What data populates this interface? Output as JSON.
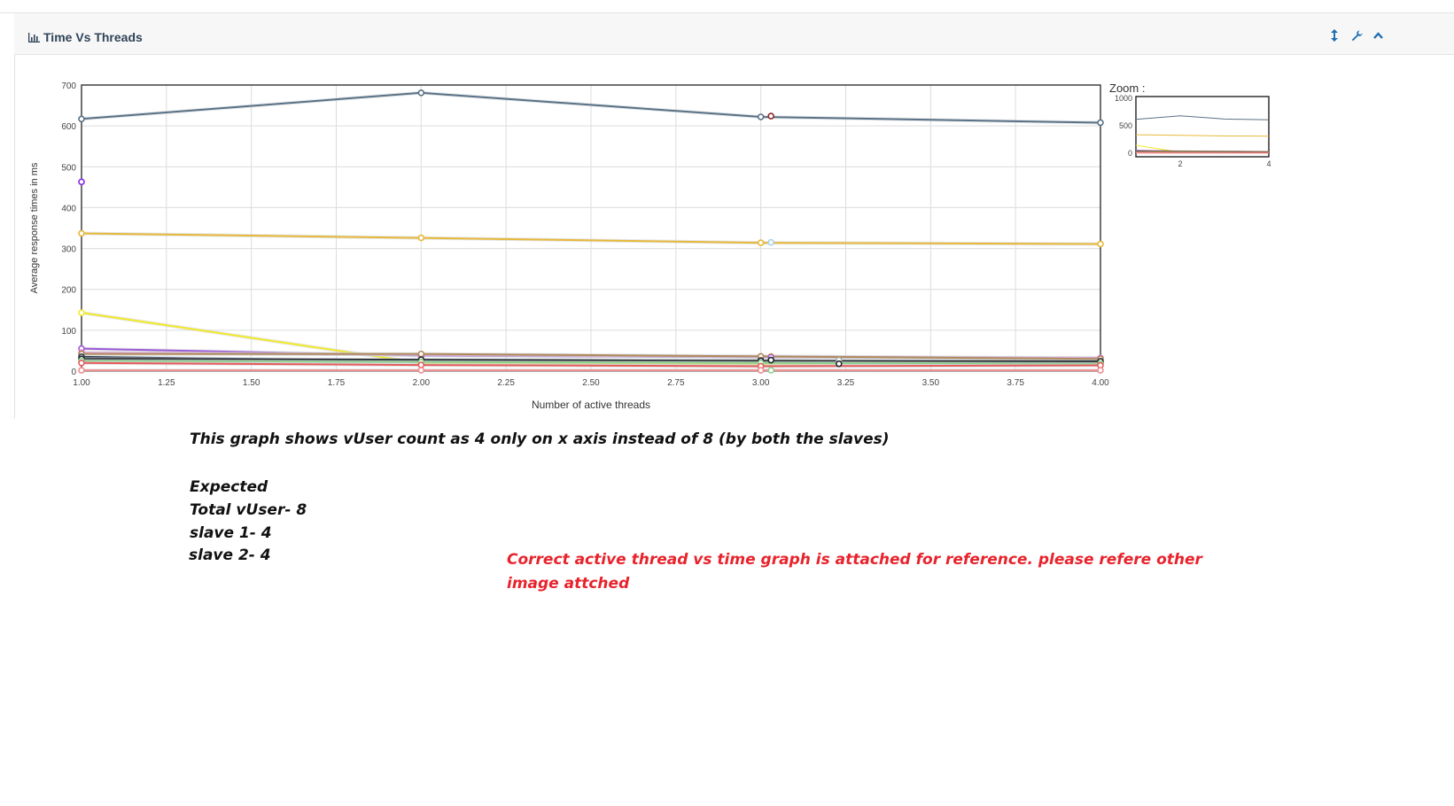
{
  "panel": {
    "title": "Time Vs Threads",
    "icons": [
      "bar-chart-icon",
      "resize-vertical-icon",
      "wrench-icon",
      "chevron-up-icon"
    ]
  },
  "chart_data": {
    "type": "line",
    "title": "",
    "xlabel": "Number of active threads",
    "ylabel": "Average response times in ms",
    "xlim": [
      1.0,
      4.0
    ],
    "ylim": [
      0,
      700
    ],
    "x_ticks": [
      "1.00",
      "1.25",
      "1.50",
      "1.75",
      "2.00",
      "2.25",
      "2.50",
      "2.75",
      "3.00",
      "3.25",
      "3.50",
      "3.75",
      "4.00"
    ],
    "y_ticks": [
      "0",
      "100",
      "200",
      "300",
      "400",
      "500",
      "600",
      "700"
    ],
    "grid": true,
    "series": [
      {
        "color": "#5a7185",
        "points": [
          [
            1.0,
            617
          ],
          [
            2.0,
            681
          ],
          [
            3.0,
            622
          ],
          [
            4.0,
            608
          ]
        ]
      },
      {
        "color": "#e8b83a",
        "points": [
          [
            1.0,
            337
          ],
          [
            2.0,
            326
          ],
          [
            3.0,
            314
          ],
          [
            4.0,
            311
          ]
        ]
      },
      {
        "color": "#f2ea2a",
        "points": [
          [
            1.0,
            143
          ],
          [
            2.0,
            20
          ],
          [
            3.0,
            18
          ],
          [
            4.0,
            22
          ]
        ]
      },
      {
        "color": "#9b59d6",
        "points": [
          [
            1.0,
            55
          ],
          [
            2.0,
            38
          ],
          [
            3.0,
            34
          ],
          [
            4.0,
            32
          ]
        ]
      },
      {
        "color": "#e27cc9",
        "points": [
          [
            1.0,
            45
          ],
          [
            2.0,
            40
          ],
          [
            3.0,
            36
          ],
          [
            4.0,
            32
          ]
        ]
      },
      {
        "color": "#b08a5a",
        "points": [
          [
            1.0,
            42
          ],
          [
            2.0,
            42
          ],
          [
            3.0,
            36
          ],
          [
            4.0,
            30
          ]
        ]
      },
      {
        "color": "#2d3b4c",
        "points": [
          [
            1.0,
            35
          ],
          [
            2.0,
            25
          ],
          [
            3.0,
            26
          ],
          [
            4.0,
            20
          ]
        ]
      },
      {
        "color": "#23282c",
        "points": [
          [
            1.0,
            30
          ],
          [
            2.0,
            28
          ],
          [
            3.0,
            25
          ],
          [
            4.0,
            24
          ]
        ]
      },
      {
        "color": "#8fd18f",
        "points": [
          [
            1.0,
            25
          ],
          [
            2.0,
            22
          ],
          [
            3.0,
            20
          ],
          [
            4.0,
            18
          ]
        ]
      },
      {
        "color": "#e65b5b",
        "points": [
          [
            1.0,
            20
          ],
          [
            2.0,
            15
          ],
          [
            3.0,
            12
          ],
          [
            4.0,
            14
          ]
        ]
      },
      {
        "color": "#f08c8c",
        "points": [
          [
            1.0,
            2
          ],
          [
            2.0,
            2
          ],
          [
            3.0,
            2
          ],
          [
            4.0,
            2
          ]
        ]
      }
    ],
    "extra_points": [
      {
        "color": "#8a2be2",
        "x": 1.0,
        "y": 463
      },
      {
        "color": "#8b2a2a",
        "x": 3.03,
        "y": 624
      },
      {
        "color": "#a8d0ec",
        "x": 3.03,
        "y": 315
      },
      {
        "color": "#e8b83a",
        "x": 3.03,
        "y": 36
      },
      {
        "color": "#9b59d6",
        "x": 3.03,
        "y": 34
      },
      {
        "color": "#23282c",
        "x": 3.03,
        "y": 27
      },
      {
        "color": "#8fd18f",
        "x": 3.03,
        "y": 2
      },
      {
        "color": "#aaaaaa",
        "x": 3.23,
        "y": 27
      },
      {
        "color": "#23282c",
        "x": 3.23,
        "y": 18
      }
    ]
  },
  "zoom": {
    "label": "Zoom :",
    "y_ticks": [
      "1000",
      "500",
      "0"
    ],
    "x_ticks": [
      "2",
      "4"
    ]
  },
  "notes": {
    "line1": "This graph shows vUser count as 4 only on x axis instead of 8 (by both the slaves)",
    "line2": "Expected",
    "line3": "Total vUser- 8",
    "line4": "slave 1- 4",
    "line5": "slave 2- 4",
    "red": "Correct active thread vs time graph is attached for reference. please refere other image attched"
  }
}
